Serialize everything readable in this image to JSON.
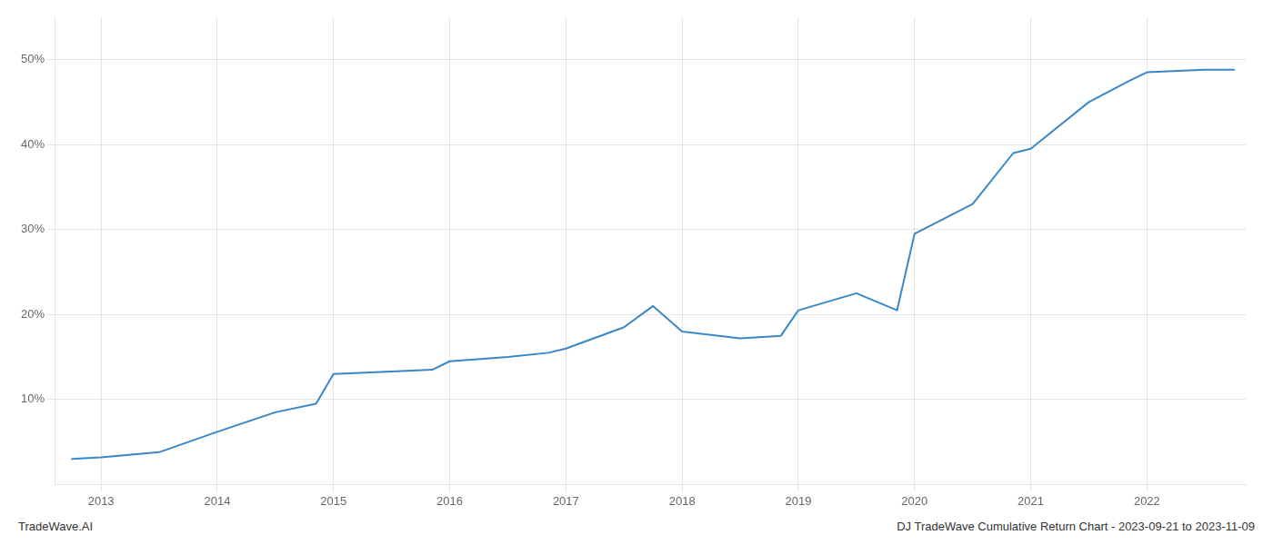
{
  "chart_data": {
    "type": "line",
    "x": [
      2012.75,
      2013.0,
      2013.5,
      2014.0,
      2014.5,
      2014.85,
      2015.0,
      2015.5,
      2015.85,
      2016.0,
      2016.5,
      2016.85,
      2017.0,
      2017.5,
      2017.75,
      2018.0,
      2018.5,
      2018.85,
      2019.0,
      2019.5,
      2019.85,
      2020.0,
      2020.5,
      2020.85,
      2021.0,
      2021.5,
      2021.85,
      2022.0,
      2022.5,
      2022.75
    ],
    "values": [
      3.0,
      3.2,
      3.8,
      6.2,
      8.5,
      9.5,
      13.0,
      13.3,
      13.5,
      14.5,
      15.0,
      15.5,
      16.0,
      18.5,
      21.0,
      18.0,
      17.2,
      17.5,
      20.5,
      22.5,
      20.5,
      29.5,
      33.0,
      39.0,
      39.5,
      45.0,
      47.5,
      48.5,
      48.8,
      48.8
    ],
    "color": "#3a87c8",
    "xlim": [
      2012.6,
      2022.85
    ],
    "xticks": [
      2013,
      2014,
      2015,
      2016,
      2017,
      2018,
      2019,
      2020,
      2021,
      2022
    ],
    "ylim": [
      0,
      55
    ],
    "yticks": [
      {
        "value": 10,
        "label": "10%"
      },
      {
        "value": 20,
        "label": "20%"
      },
      {
        "value": 30,
        "label": "30%"
      },
      {
        "value": 40,
        "label": "40%"
      },
      {
        "value": 50,
        "label": "50%"
      }
    ],
    "grid": true,
    "annotations": [
      "TradeWave.AI",
      "DJ TradeWave Cumulative Return Chart - 2023-09-21 to 2023-11-09"
    ]
  }
}
